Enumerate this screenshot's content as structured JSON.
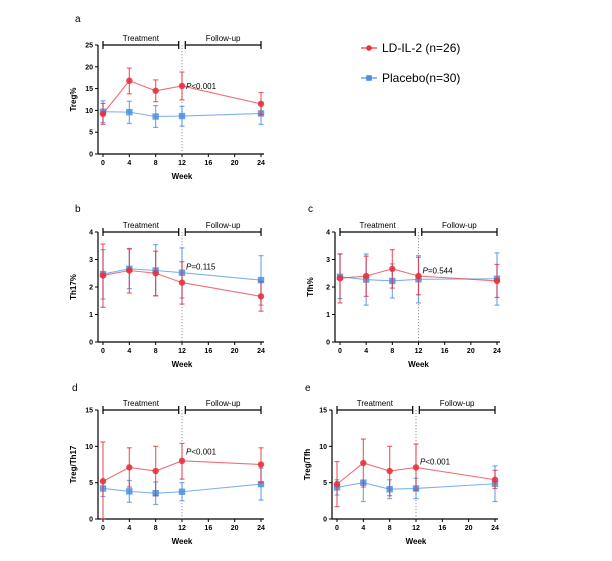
{
  "legend": {
    "items": [
      {
        "label": "LD-IL-2 (n=26)",
        "color": "#e8323c",
        "marker": "circle"
      },
      {
        "label": "Placebo(n=30)",
        "color": "#4a90e2",
        "marker": "square"
      }
    ]
  },
  "chart_data": [
    {
      "type": "line",
      "panel": "a",
      "xlabel": "Week",
      "ylabel": "Treg%",
      "xlim": [
        0,
        24
      ],
      "ylim": [
        0,
        25
      ],
      "xticks": [
        0,
        4,
        8,
        12,
        16,
        20,
        24
      ],
      "yticks": [
        0,
        5,
        10,
        15,
        20,
        25
      ],
      "phases": [
        {
          "label": "Treatment",
          "range": [
            0,
            11.5
          ]
        },
        {
          "label": "Follow-up",
          "range": [
            12.5,
            24
          ]
        }
      ],
      "divider_x": 12,
      "annotation": {
        "text": "P<0.001",
        "x": 12,
        "y": 15.6
      },
      "series": [
        {
          "name": "LD-IL-2 (n=26)",
          "color": "#e8323c",
          "marker": "circle",
          "x": [
            0,
            4,
            8,
            12,
            24
          ],
          "y": [
            9.2,
            16.8,
            14.5,
            15.6,
            11.5
          ],
          "err_low": [
            6.8,
            13.8,
            12.0,
            12.4,
            9.0
          ],
          "err_high": [
            11.6,
            19.7,
            17.0,
            18.8,
            14.1
          ]
        },
        {
          "name": "Placebo(n=30)",
          "color": "#4a90e2",
          "marker": "square",
          "x": [
            0,
            4,
            8,
            12,
            24
          ],
          "y": [
            9.7,
            9.6,
            8.6,
            8.7,
            9.3
          ],
          "err_low": [
            7.2,
            7.0,
            6.1,
            6.4,
            6.8
          ],
          "err_high": [
            12.2,
            12.1,
            11.1,
            10.9,
            11.8
          ]
        }
      ]
    },
    {
      "type": "line",
      "panel": "b",
      "xlabel": "Week",
      "ylabel": "Th17%",
      "xlim": [
        0,
        24
      ],
      "ylim": [
        0,
        4
      ],
      "xticks": [
        0,
        4,
        8,
        12,
        16,
        20,
        24
      ],
      "yticks": [
        0,
        1,
        2,
        3,
        4
      ],
      "phases": [
        {
          "label": "Treatment",
          "range": [
            0,
            11.5
          ]
        },
        {
          "label": "Follow-up",
          "range": [
            12.5,
            24
          ]
        }
      ],
      "divider_x": 12,
      "annotation": {
        "text": "P=0.115",
        "x": 12,
        "y": 2.75
      },
      "series": [
        {
          "name": "LD-IL-2 (n=26)",
          "color": "#e8323c",
          "marker": "circle",
          "x": [
            0,
            4,
            8,
            12,
            24
          ],
          "y": [
            2.42,
            2.6,
            2.5,
            2.16,
            1.66
          ],
          "err_low": [
            1.26,
            1.78,
            1.68,
            1.38,
            1.12
          ],
          "err_high": [
            3.56,
            3.4,
            3.3,
            2.92,
            2.2
          ]
        },
        {
          "name": "Placebo(n=30)",
          "color": "#4a90e2",
          "marker": "square",
          "x": [
            0,
            4,
            8,
            12,
            24
          ],
          "y": [
            2.47,
            2.66,
            2.6,
            2.52,
            2.25
          ],
          "err_low": [
            1.56,
            1.94,
            1.68,
            1.6,
            1.34
          ],
          "err_high": [
            3.36,
            3.38,
            3.54,
            3.42,
            3.14
          ]
        }
      ]
    },
    {
      "type": "line",
      "panel": "c",
      "xlabel": "Week",
      "ylabel": "Tfh%",
      "xlim": [
        0,
        24
      ],
      "ylim": [
        0,
        4
      ],
      "xticks": [
        0,
        4,
        8,
        12,
        16,
        20,
        24
      ],
      "yticks": [
        0,
        1,
        2,
        3,
        4
      ],
      "phases": [
        {
          "label": "Treatment",
          "range": [
            0,
            11.5
          ]
        },
        {
          "label": "Follow-up",
          "range": [
            12.5,
            24
          ]
        }
      ],
      "divider_x": 12,
      "annotation": {
        "text": "P=0.544",
        "x": 12,
        "y": 2.6
      },
      "series": [
        {
          "name": "LD-IL-2 (n=26)",
          "color": "#e8323c",
          "marker": "circle",
          "x": [
            0,
            4,
            8,
            12,
            24
          ],
          "y": [
            2.32,
            2.4,
            2.66,
            2.4,
            2.22
          ],
          "err_low": [
            1.42,
            1.66,
            1.96,
            1.72,
            1.62
          ],
          "err_high": [
            3.2,
            3.12,
            3.36,
            3.08,
            2.82
          ]
        },
        {
          "name": "Placebo(n=30)",
          "color": "#4a90e2",
          "marker": "square",
          "x": [
            0,
            4,
            8,
            12,
            24
          ],
          "y": [
            2.37,
            2.27,
            2.22,
            2.28,
            2.3
          ],
          "err_low": [
            1.58,
            1.34,
            1.6,
            1.42,
            1.34
          ],
          "err_high": [
            3.2,
            3.2,
            2.84,
            3.14,
            3.24
          ]
        }
      ]
    },
    {
      "type": "line",
      "panel": "d",
      "xlabel": "Week",
      "ylabel": "Treg/Th17",
      "xlim": [
        0,
        24
      ],
      "ylim": [
        0,
        15
      ],
      "xticks": [
        0,
        4,
        8,
        12,
        16,
        20,
        24
      ],
      "yticks": [
        0,
        5,
        10,
        15
      ],
      "phases": [
        {
          "label": "Treatment",
          "range": [
            0,
            11.5
          ]
        },
        {
          "label": "Follow-up",
          "range": [
            12.5,
            24
          ]
        }
      ],
      "divider_x": 12,
      "annotation": {
        "text": "P<0.001",
        "x": 12,
        "y": 9.3
      },
      "series": [
        {
          "name": "LD-IL-2 (n=26)",
          "color": "#e8323c",
          "marker": "circle",
          "x": [
            0,
            4,
            8,
            12,
            24
          ],
          "y": [
            5.2,
            7.1,
            6.6,
            8.0,
            7.5
          ],
          "err_low": [
            0,
            4.4,
            3.2,
            5.5,
            5.0
          ],
          "err_high": [
            10.6,
            9.8,
            10.0,
            10.4,
            9.8
          ]
        },
        {
          "name": "Placebo(n=30)",
          "color": "#4a90e2",
          "marker": "square",
          "x": [
            0,
            4,
            8,
            12,
            24
          ],
          "y": [
            4.2,
            3.8,
            3.55,
            3.75,
            4.8
          ],
          "err_low": [
            3.1,
            2.3,
            2.0,
            2.5,
            2.6
          ],
          "err_high": [
            5.3,
            5.3,
            5.1,
            5.0,
            7.0
          ]
        }
      ]
    },
    {
      "type": "line",
      "panel": "e",
      "xlabel": "Week",
      "ylabel": "Treg/Tfh",
      "xlim": [
        0,
        24
      ],
      "ylim": [
        0,
        15
      ],
      "xticks": [
        0,
        4,
        8,
        12,
        16,
        20,
        24
      ],
      "yticks": [
        0,
        5,
        10,
        15
      ],
      "phases": [
        {
          "label": "Treatment",
          "range": [
            0,
            11.5
          ]
        },
        {
          "label": "Follow-up",
          "range": [
            12.5,
            24
          ]
        }
      ],
      "divider_x": 12,
      "annotation": {
        "text": "P<0.001",
        "x": 12,
        "y": 7.9
      },
      "series": [
        {
          "name": "LD-IL-2 (n=26)",
          "color": "#e8323c",
          "marker": "circle",
          "x": [
            0,
            4,
            8,
            12,
            24
          ],
          "y": [
            4.8,
            7.7,
            6.6,
            7.1,
            5.4
          ],
          "err_low": [
            1.7,
            4.4,
            3.2,
            4.0,
            4.2
          ],
          "err_high": [
            7.9,
            11.0,
            10.0,
            10.3,
            6.7
          ]
        },
        {
          "name": "Placebo(n=30)",
          "color": "#4a90e2",
          "marker": "square",
          "x": [
            0,
            4,
            8,
            12,
            24
          ],
          "y": [
            4.35,
            5.0,
            4.1,
            4.2,
            4.85
          ],
          "err_low": [
            3.3,
            2.4,
            2.8,
            2.8,
            2.4
          ],
          "err_high": [
            5.4,
            5.0,
            5.4,
            5.6,
            7.3
          ]
        }
      ]
    }
  ]
}
